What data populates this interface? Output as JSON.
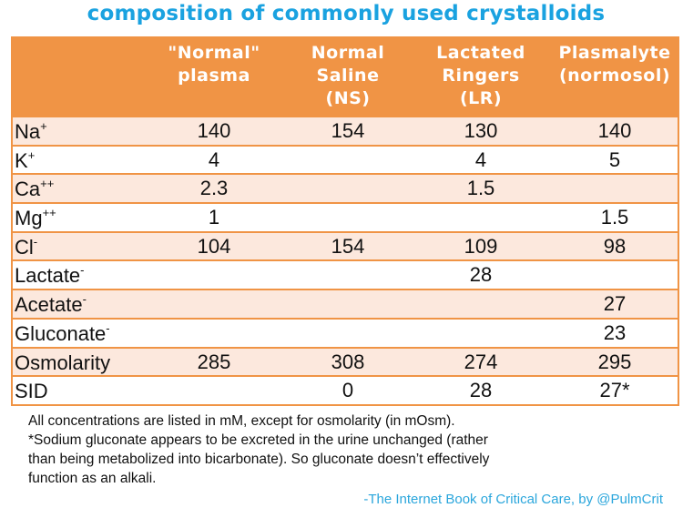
{
  "title": "composition of commonly used crystalloids",
  "columns": [
    "\"Normal\"\nplasma",
    "Normal\nSaline\n(NS)",
    "Lactated\nRingers\n(LR)",
    "Plasmalyte\n(normosol)"
  ],
  "rows": [
    {
      "label": "Na",
      "sup": "+",
      "values": [
        "140",
        "154",
        "130",
        "140"
      ]
    },
    {
      "label": "K",
      "sup": "+",
      "values": [
        "4",
        "",
        "4",
        "5"
      ]
    },
    {
      "label": "Ca",
      "sup": "++",
      "values": [
        "2.3",
        "",
        "1.5",
        ""
      ]
    },
    {
      "label": "Mg",
      "sup": "++",
      "values": [
        "1",
        "",
        "",
        "1.5"
      ]
    },
    {
      "label": "Cl",
      "sup": "-",
      "values": [
        "104",
        "154",
        "109",
        "98"
      ]
    },
    {
      "label": "Lactate",
      "sup": "-",
      "values": [
        "",
        "",
        "28",
        ""
      ]
    },
    {
      "label": "Acetate",
      "sup": "-",
      "values": [
        "",
        "",
        "",
        "27"
      ]
    },
    {
      "label": "Gluconate",
      "sup": "-",
      "values": [
        "",
        "",
        "",
        "23"
      ]
    },
    {
      "label": "Osmolarity",
      "sup": "",
      "values": [
        "285",
        "308",
        "274",
        "295"
      ]
    },
    {
      "label": "SID",
      "sup": "",
      "values": [
        "",
        "0",
        "28",
        "27*"
      ]
    }
  ],
  "notes": "All concentrations are listed in mM, except for osmolarity (in mOsm).\n*Sodium gluconate appears to be excreted in the urine unchanged (rather\nthan being metabolized into bicarbonate).  So gluconate doesn’t effectively\nfunction as an alkali.",
  "credit": "-The Internet Book of Critical Care, by @PulmCrit",
  "colors": {
    "title": "#1aa2e0",
    "header": "#f09445",
    "row_alt": "#fce8dd"
  }
}
